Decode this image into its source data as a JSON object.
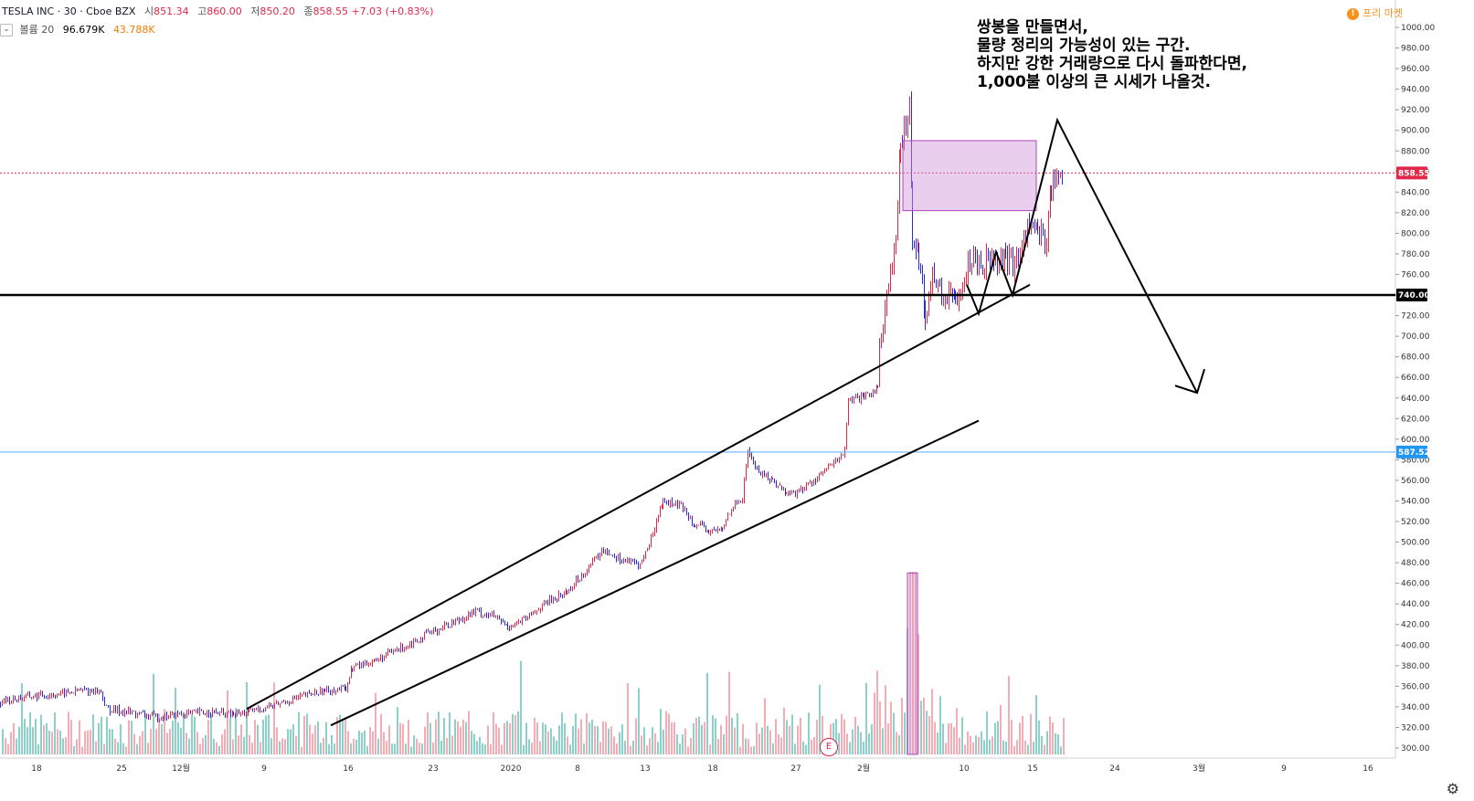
{
  "header": {
    "symbol": "TESLA INC · 30 · Cboe BZX",
    "open_label": "시",
    "open": "851.34",
    "high_label": "고",
    "high": "860.00",
    "low_label": "저",
    "low": "850.20",
    "close_label": "종",
    "close": "858.55",
    "change": "+7.03 (+0.83%)"
  },
  "volume_legend": {
    "collapse_icon": "chevron-down-icon",
    "label": "볼륨 20",
    "value1": "96.679K",
    "value2": "43.788K"
  },
  "free_market": {
    "icon": "!",
    "label": "프리 마켓"
  },
  "annotation": {
    "lines": [
      "쌍봉을 만들면서,",
      "물량 정리의 가능성이 있는 구간.",
      "하지만 강한 거래량으로 다시 돌파한다면,",
      "1,000불 이상의 큰 시세가 나올것."
    ]
  },
  "earnings_marker": "E",
  "colors": {
    "up": "#e0294a",
    "down": "#2a2ad6",
    "vol_up": "#f5a3ad",
    "vol_down": "#80cbc4",
    "price_line": "#e0294a",
    "support_blue": "#64b5f6",
    "box": "#ce93d8"
  },
  "chart_data": {
    "type": "candlestick",
    "ylim": [
      290,
      1000
    ],
    "y_ticks": [
      "1000.00",
      "980.00",
      "960.00",
      "940.00",
      "920.00",
      "900.00",
      "880.00",
      "860.00",
      "840.00",
      "820.00",
      "800.00",
      "780.00",
      "760.00",
      "740.00",
      "720.00",
      "700.00",
      "680.00",
      "660.00",
      "640.00",
      "620.00",
      "600.00",
      "580.00",
      "560.00",
      "540.00",
      "520.00",
      "500.00",
      "480.00",
      "460.00",
      "440.00",
      "420.00",
      "400.00",
      "380.00",
      "360.00",
      "340.00",
      "320.00",
      "300.00"
    ],
    "x_ticks": [
      "18",
      "25",
      "12월",
      "9",
      "16",
      "23",
      "2020",
      "8",
      "13",
      "18",
      "27",
      "2월",
      "10",
      "15",
      "24",
      "3월",
      "9",
      "16"
    ],
    "current_price": "858.55",
    "level_black": "740.00",
    "level_blue": "587.52",
    "price_path": [
      [
        0,
        345
      ],
      [
        30,
        350
      ],
      [
        60,
        352
      ],
      [
        90,
        356
      ],
      [
        110,
        355
      ],
      [
        116,
        338
      ],
      [
        140,
        335
      ],
      [
        170,
        330
      ],
      [
        200,
        333
      ],
      [
        230,
        335
      ],
      [
        255,
        332
      ],
      [
        272,
        335
      ],
      [
        300,
        342
      ],
      [
        330,
        350
      ],
      [
        355,
        356
      ],
      [
        378,
        358
      ],
      [
        385,
        378
      ],
      [
        410,
        385
      ],
      [
        440,
        398
      ],
      [
        470,
        412
      ],
      [
        500,
        424
      ],
      [
        520,
        433
      ],
      [
        540,
        428
      ],
      [
        555,
        418
      ],
      [
        575,
        425
      ],
      [
        595,
        440
      ],
      [
        620,
        452
      ],
      [
        640,
        472
      ],
      [
        660,
        493
      ],
      [
        680,
        483
      ],
      [
        700,
        478
      ],
      [
        710,
        498
      ],
      [
        725,
        540
      ],
      [
        745,
        535
      ],
      [
        760,
        518
      ],
      [
        775,
        510
      ],
      [
        790,
        512
      ],
      [
        800,
        535
      ],
      [
        812,
        542
      ],
      [
        818,
        590
      ],
      [
        828,
        570
      ],
      [
        845,
        560
      ],
      [
        860,
        548
      ],
      [
        872,
        548
      ],
      [
        890,
        560
      ],
      [
        910,
        575
      ],
      [
        924,
        588
      ],
      [
        928,
        638
      ],
      [
        945,
        640
      ],
      [
        960,
        650
      ],
      [
        962,
        695
      ],
      [
        970,
        740
      ],
      [
        980,
        790
      ],
      [
        985,
        880
      ],
      [
        995,
        930
      ],
      [
        998,
        800
      ],
      [
        1005,
        780
      ],
      [
        1012,
        720
      ],
      [
        1020,
        760
      ],
      [
        1030,
        740
      ],
      [
        1045,
        735
      ],
      [
        1055,
        760
      ],
      [
        1065,
        780
      ],
      [
        1075,
        770
      ],
      [
        1085,
        780
      ],
      [
        1100,
        775
      ],
      [
        1110,
        770
      ],
      [
        1118,
        790
      ],
      [
        1126,
        810
      ],
      [
        1135,
        800
      ],
      [
        1145,
        795
      ],
      [
        1150,
        848
      ],
      [
        1163,
        858
      ]
    ],
    "box_range": [
      822,
      890
    ],
    "volume_spike": 470
  }
}
